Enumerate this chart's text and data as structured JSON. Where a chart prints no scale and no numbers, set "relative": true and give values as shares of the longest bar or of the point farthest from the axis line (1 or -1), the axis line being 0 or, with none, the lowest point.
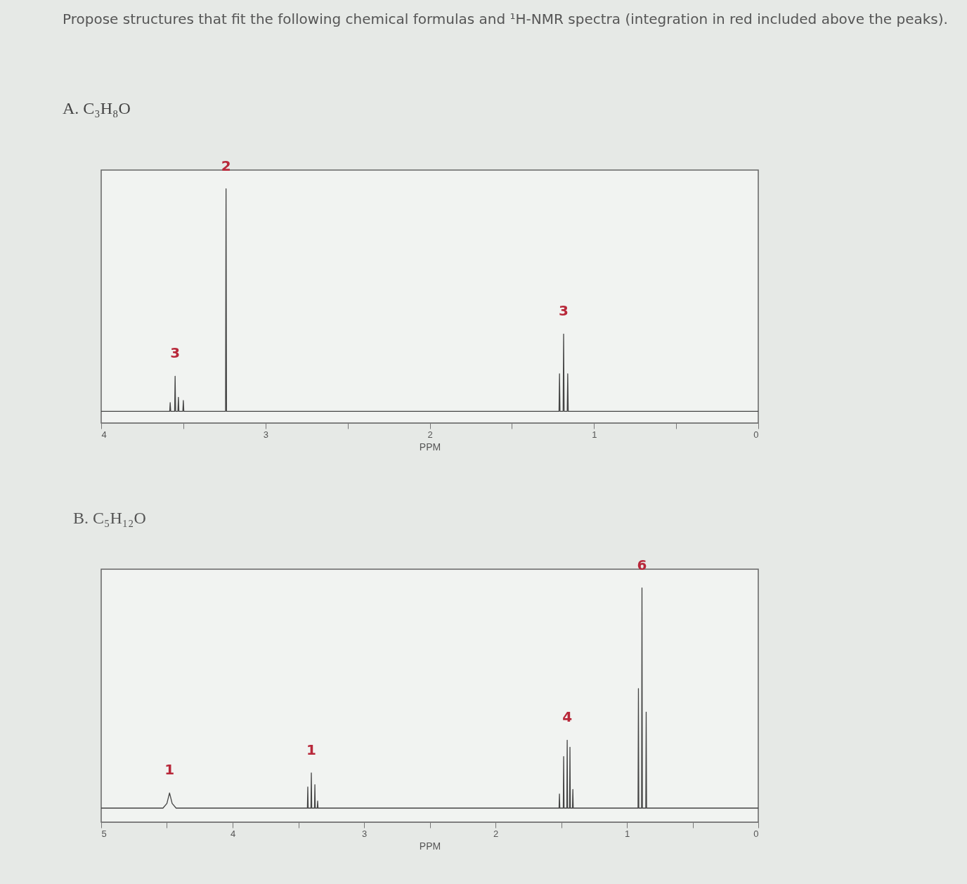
{
  "chart_data": [
    {
      "type": "line",
      "title": "Propose structures that fit the following chemical formulas and ¹H-NMR spectra (integration in red included above the peaks).",
      "subtitle": "A. C₃H₈O",
      "xlabel": "PPM",
      "relative": true,
      "xlim": [
        4,
        0
      ],
      "xticks": [
        4,
        {
          "value": 3.5,
          "label": null
        },
        3,
        {
          "value": 2.5,
          "label": null
        },
        2,
        {
          "value": 1.5,
          "label": null
        },
        1,
        {
          "value": 0.5,
          "label": null
        },
        0
      ],
      "series": [
        {
          "color": "#444444",
          "x": [
            4,
            3.6,
            3.583,
            3.58,
            3.577,
            3.553,
            3.55,
            3.547,
            3.533,
            3.53,
            3.527,
            3.503,
            3.5,
            3.497,
            3.25,
            3.243,
            3.24,
            3.237,
            3.23,
            1.215,
            1.213,
            1.21,
            1.207,
            1.188,
            1.185,
            1.182,
            1.163,
            1.16,
            1.157,
            1.15,
            0
          ],
          "values": [
            0.05,
            0.05,
            0.05,
            0.087,
            0.05,
            0.05,
            0.2,
            0.05,
            0.05,
            0.11,
            0.05,
            0.05,
            0.096,
            0.05,
            0.05,
            0.05,
            1,
            0.05,
            0.05,
            0.05,
            0.05,
            0.21,
            0.05,
            0.05,
            0.38,
            0.05,
            0.05,
            0.21,
            0.05,
            0.05,
            0.05
          ]
        }
      ],
      "annotations": [
        {
          "text": "3",
          "x": 3.55,
          "y": 0.2
        },
        {
          "text": "2",
          "x": 3.24,
          "y": 1
        },
        {
          "text": "3",
          "x": 1.185,
          "y": 0.38
        }
      ]
    },
    {
      "type": "line",
      "subtitle": "B. C₅H₁₂O",
      "xlabel": "PPM",
      "relative": true,
      "xlim": [
        5,
        0
      ],
      "xticks": [
        5,
        {
          "value": 4.5,
          "label": null
        },
        4,
        {
          "value": 3.5,
          "label": null
        },
        3,
        {
          "value": 2.5,
          "label": null
        },
        2,
        {
          "value": 1.5,
          "label": null
        },
        1,
        {
          "value": 0.5,
          "label": null
        },
        0
      ],
      "series": [
        {
          "color": "#444444",
          "x": [
            5,
            4.53,
            4.5,
            4.48,
            4.46,
            4.43,
            3.46,
            3.444,
            3.431,
            3.428,
            3.425,
            3.404,
            3.401,
            3.398,
            3.377,
            3.374,
            3.371,
            3.356,
            3.353,
            3.35,
            3.34,
            1.53,
            1.516,
            1.513,
            1.51,
            1.484,
            1.481,
            1.478,
            1.457,
            1.454,
            1.451,
            1.436,
            1.433,
            1.43,
            1.414,
            1.411,
            1.408,
            1.39,
            0.93,
            0.915,
            0.912,
            0.909,
            0.888,
            0.885,
            0.882,
            0.856,
            0.853,
            0.85,
            0.84,
            0
          ],
          "values": [
            0.06,
            0.06,
            0.08,
            0.125,
            0.08,
            0.06,
            0.06,
            0.06,
            0.06,
            0.15,
            0.06,
            0.06,
            0.21,
            0.06,
            0.06,
            0.16,
            0.06,
            0.06,
            0.09,
            0.06,
            0.06,
            0.06,
            0.06,
            0.12,
            0.06,
            0.06,
            0.28,
            0.06,
            0.06,
            0.35,
            0.06,
            0.06,
            0.32,
            0.06,
            0.06,
            0.14,
            0.06,
            0.06,
            0.06,
            0.06,
            0.57,
            0.06,
            0.06,
            1,
            0.06,
            0.06,
            0.47,
            0.06,
            0.06,
            0.06
          ]
        }
      ],
      "annotations": [
        {
          "text": "1",
          "x": 4.48,
          "y": 0.125
        },
        {
          "text": "1",
          "x": 3.401,
          "y": 0.21
        },
        {
          "text": "4",
          "x": 1.454,
          "y": 0.35
        },
        {
          "text": "6",
          "x": 0.885,
          "y": 1
        }
      ]
    }
  ]
}
